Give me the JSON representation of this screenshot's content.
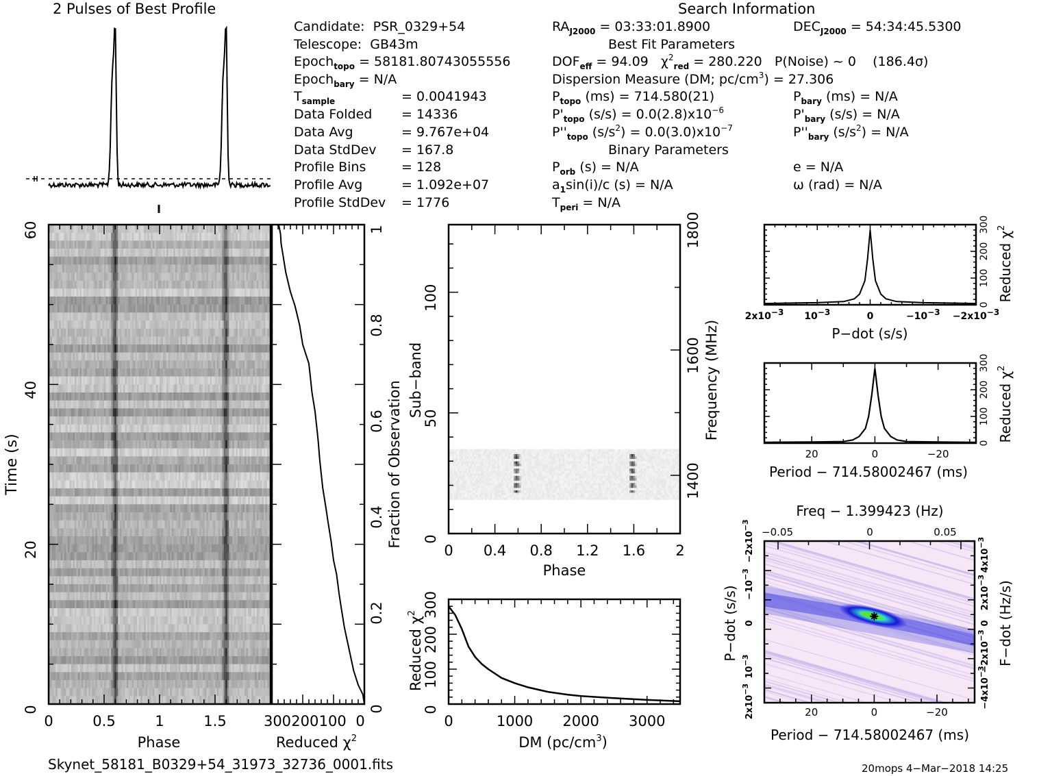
{
  "profile_title": "2 Pulses of Best Profile",
  "search_info_title": "Search Information",
  "best_fit_title": "Best Fit Parameters",
  "binary_title": "Binary Parameters",
  "info": {
    "candidate_label": "Candidate:",
    "candidate_value": "PSR_0329+54",
    "telescope_label": "Telescope:",
    "telescope_value": "GB43m",
    "epoch_topo_label": "Epoch",
    "epoch_topo_sub": "topo",
    "epoch_topo_value": "= 58181.80743055556",
    "epoch_bary_label": "Epoch",
    "epoch_bary_sub": "bary",
    "epoch_bary_value": "= N/A",
    "tsample_label": "T",
    "tsample_sub": "sample",
    "tsample_value": "=   0.0041943",
    "data_folded_label": "Data Folded",
    "data_folded_value": "=   14336",
    "data_avg_label": "Data Avg",
    "data_avg_value": "=   9.767e+04",
    "data_stddev_label": "Data StdDev",
    "data_stddev_value": "=   167.8",
    "profile_bins_label": "Profile Bins",
    "profile_bins_value": "=   128",
    "profile_avg_label": "Profile Avg",
    "profile_avg_value": "=   1.092e+07",
    "profile_stddev_label": "Profile StdDev",
    "profile_stddev_value": "=   1776"
  },
  "search": {
    "ra_label": "RA",
    "ra_sub": "J2000",
    "ra_value": "= 03:33:01.8900",
    "dec_label": "DEC",
    "dec_sub": "J2000",
    "dec_value": "= 54:34:45.5300",
    "dof_label": "DOF",
    "dof_sub": "eff",
    "dof_value": "= 94.09",
    "chi_label": "χ",
    "chi_sup": "2",
    "chi_sub": "red",
    "chi_value": "= 280.220",
    "pnoise": "P(Noise) ~ 0",
    "sigma": "(186.4σ)",
    "dm_label": "Dispersion Measure (DM; pc/cm",
    "dm_sup": "3",
    "dm_value": ") = 27.306",
    "ptopo_label": "P",
    "ptopo_sub": "topo",
    "ptopo_value": "(ms) =  714.580(21)",
    "pdtopo_label": "P'",
    "pdtopo_sub": "topo",
    "pdtopo_value": "(s/s) = 0.0(2.8)x10",
    "pdtopo_sup": "−6",
    "pddtopo_label": "P''",
    "pddtopo_sub": "topo",
    "pddtopo_value_a": "(s/s",
    "pddtopo_value_sup": "2",
    "pddtopo_value_b": ") = 0.0(3.0)x10",
    "pddtopo_sup": "−7",
    "pbary_label": "P",
    "pbary_sub": "bary",
    "pbary_value": "(ms) = N/A",
    "pdbary_label": "P'",
    "pdbary_sub": "bary",
    "pdbary_value": "(s/s) = N/A",
    "pddbary_label": "P''",
    "pddbary_sub": "bary",
    "pddbary_value_a": "(s/s",
    "pddbary_value_sup": "2",
    "pddbary_value_b": ") = N/A",
    "porb_label": "P",
    "porb_sub": "orb",
    "porb_value": "(s) = N/A",
    "a1_label": "a",
    "a1_sub": "1",
    "a1_value": "sin(i)/c (s) = N/A",
    "tperi_label": "T",
    "tperi_sub": "peri",
    "tperi_value": "= N/A",
    "e_value": "e = N/A",
    "omega_value": "ω (rad) = N/A"
  },
  "footer": {
    "filename": "Skynet_58181_B0329+54_31973_32736_0001.fits",
    "stamp": "20mops   4−Mar−2018 14:25"
  },
  "chart_data": [
    {
      "type": "line",
      "name": "pulse-profile",
      "title": "2 Pulses of Best Profile",
      "x_range": [
        0,
        2
      ],
      "peaks_phase": [
        0.59,
        1.59
      ],
      "baseline_marker": "dashed"
    },
    {
      "type": "heatmap",
      "name": "time-phase",
      "xlabel": "Phase",
      "ylabel": "Time (s)",
      "xlim": [
        0,
        2
      ],
      "ylim": [
        0,
        60
      ],
      "x_ticks": [
        "0",
        "0.5",
        "1",
        "1.5"
      ],
      "y_ticks": [
        "0",
        "20",
        "40",
        "60"
      ],
      "pulse_phase": [
        0.59,
        1.59
      ]
    },
    {
      "type": "line",
      "name": "time-chi2",
      "xlabel": "Reduced χ",
      "xlabel_sup": "2",
      "ylabel": "Fraction of Observation",
      "xlim": [
        300,
        0
      ],
      "ylim": [
        0,
        1
      ],
      "x_ticks": [
        "300",
        "200",
        "100",
        "0"
      ],
      "y_ticks": [
        "0",
        "0.2",
        "0.4",
        "0.6",
        "0.8",
        "1"
      ],
      "x": [
        0,
        5,
        20,
        35,
        45,
        55,
        65,
        75,
        82,
        90,
        100,
        108,
        118,
        125,
        135,
        140,
        145,
        150,
        155,
        160,
        170,
        175,
        180,
        200,
        210,
        225,
        240,
        255,
        265,
        270,
        272,
        275,
        278
      ],
      "y": [
        0.0,
        0.02,
        0.04,
        0.07,
        0.1,
        0.13,
        0.16,
        0.2,
        0.23,
        0.27,
        0.3,
        0.34,
        0.38,
        0.41,
        0.45,
        0.48,
        0.51,
        0.55,
        0.58,
        0.61,
        0.65,
        0.68,
        0.71,
        0.75,
        0.79,
        0.83,
        0.86,
        0.9,
        0.94,
        0.96,
        0.98,
        0.99,
        1.0
      ]
    },
    {
      "type": "heatmap",
      "name": "subband-phase",
      "xlabel": "Phase",
      "ylabel": "Sub−band",
      "ylabel_right": "Frequency (MHz)",
      "xlim": [
        0,
        2
      ],
      "ylim": [
        0,
        128
      ],
      "x_ticks": [
        "0",
        "0.4",
        "0.8",
        "1.2",
        "1.6",
        "2"
      ],
      "y_ticks": [
        "0",
        "50",
        "100"
      ],
      "y_right_ticks": [
        "1400",
        "1600",
        "1800"
      ],
      "active_subbands": [
        14,
        35
      ],
      "pulse_phase": [
        0.59,
        1.59
      ]
    },
    {
      "type": "line",
      "name": "dm-chi2",
      "xlabel": "DM (pc/cm",
      "xlabel_sup": "3",
      "xlabel_end": ")",
      "ylabel": "Reduced χ",
      "ylabel_sup": "2",
      "xlim": [
        0,
        3500
      ],
      "ylim": [
        0,
        300
      ],
      "x_ticks": [
        "0",
        "1000",
        "2000",
        "3000"
      ],
      "y_ticks": [
        "0",
        "100",
        "200",
        "300"
      ],
      "x": [
        0,
        100,
        200,
        300,
        400,
        500,
        600,
        800,
        1000,
        1200,
        1500,
        1800,
        2000,
        2500,
        3000,
        3500
      ],
      "y": [
        280,
        255,
        215,
        165,
        135,
        115,
        100,
        75,
        60,
        48,
        35,
        27,
        23,
        17,
        12,
        8
      ]
    },
    {
      "type": "line",
      "name": "pdot-chi2",
      "xlabel": "P−dot (s/s)",
      "ylabel": "Reduced χ",
      "ylabel_sup": "2",
      "xlim": [
        0.002,
        -0.002
      ],
      "ylim": [
        0,
        300
      ],
      "x_ticks": [
        "2x10−3",
        "10−3",
        "0",
        "−10−3",
        "−2x10−3"
      ],
      "y_ticks": [
        "0",
        "100",
        "200",
        "300"
      ],
      "x": [
        0.002,
        0.001,
        0.0005,
        0.0003,
        0.0002,
        0.0001,
        5e-05,
        0,
        -5e-05,
        -0.0001,
        -0.0002,
        -0.0003,
        -0.0005,
        -0.001,
        -0.002
      ],
      "y": [
        5,
        8,
        12,
        22,
        40,
        90,
        170,
        280,
        170,
        90,
        40,
        22,
        12,
        8,
        5
      ]
    },
    {
      "type": "line",
      "name": "period-chi2",
      "xlabel": "Period − 714.58002467 (ms)",
      "ylabel": "Reduced χ",
      "ylabel_sup": "2",
      "xlim": [
        35,
        -32
      ],
      "ylim": [
        0,
        300
      ],
      "x_ticks": [
        "20",
        "0",
        "−20"
      ],
      "y_ticks": [
        "0",
        "100",
        "200",
        "300"
      ],
      "x": [
        35,
        20,
        10,
        7,
        5,
        3,
        2,
        1,
        0,
        -1,
        -2,
        -3,
        -5,
        -7,
        -10,
        -20,
        -32
      ],
      "y": [
        3,
        4,
        6,
        12,
        25,
        55,
        100,
        180,
        280,
        180,
        100,
        55,
        25,
        12,
        6,
        4,
        3
      ]
    },
    {
      "type": "heatmap",
      "name": "ppdot",
      "title": "Freq − 1.399423 (Hz)",
      "xlabel": "Period − 714.58002467 (ms)",
      "ylabel": "P−dot (s/s)",
      "ylabel_right": "F−dot (Hz/s)",
      "xlim": [
        35,
        -32
      ],
      "ylim": [
        0.002,
        -0.0023
      ],
      "x_ticks": [
        "20",
        "0",
        "−20"
      ],
      "top_ticks": [
        "−0.05",
        "0",
        "0.05"
      ],
      "y_ticks": [
        "2x10−3",
        "10−3",
        "0",
        "−10−3",
        "−2x10−3"
      ],
      "y_right_ticks": [
        "−4x10−3",
        "−2x10−3",
        "0",
        "2x10−3",
        "4x10−3"
      ],
      "best": {
        "period": 0,
        "pdot": 0
      }
    }
  ],
  "colors": {
    "ppdot_background": "#f6e6f6",
    "ppdot_band": "#2020e0",
    "ppdot_core": "#30e0d0",
    "ppdot_peak": "#60e030"
  }
}
